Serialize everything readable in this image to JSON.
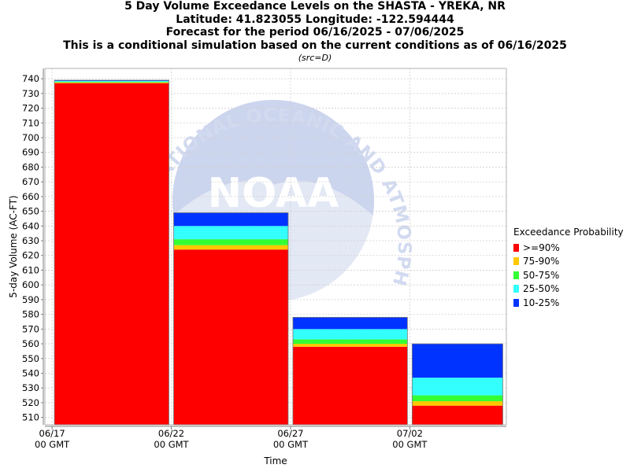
{
  "title_lines": [
    "5 Day Volume Exceedance Levels on the SHASTA - YREKA, NR",
    "Latitude: 41.823055 Longitude: -122.594444",
    "Forecast for the period 06/16/2025 - 07/06/2025",
    "This is a conditional simulation based on the current conditions as of 06/16/2025"
  ],
  "source_note": "(src=D)",
  "watermark": {
    "logo_text": "NOAA",
    "ring_text": "NATIONAL OCEANIC AND ATMOSPHERIC ADMINISTRATION"
  },
  "chart_data": {
    "type": "bar",
    "stacked": true,
    "xlabel": "Time",
    "ylabel": "5-day Volume (AC-FT)",
    "ylim": [
      505,
      747
    ],
    "y_ticks": [
      510,
      520,
      530,
      540,
      550,
      560,
      570,
      580,
      590,
      600,
      610,
      620,
      630,
      640,
      650,
      660,
      670,
      680,
      690,
      700,
      710,
      720,
      730,
      740
    ],
    "x_ticks": [
      {
        "date": "06/17",
        "sub": "00 GMT"
      },
      {
        "date": "06/22",
        "sub": "00 GMT"
      },
      {
        "date": "06/27",
        "sub": "00 GMT"
      },
      {
        "date": "07/02",
        "sub": "00 GMT"
      }
    ],
    "grid": true,
    "legend_title": "Exceedance Probability",
    "legend_position": "right",
    "bars": [
      {
        "start": "06/17",
        "end": "06/22",
        "levels": {
          ">=90%": 737,
          "75-90%": 737.5,
          "50-75%": 738,
          "25-50%": 738.5,
          "10-25%": 739
        }
      },
      {
        "start": "06/22",
        "end": "06/27",
        "levels": {
          ">=90%": 624,
          "75-90%": 627,
          "50-75%": 631,
          "25-50%": 640,
          "10-25%": 649
        }
      },
      {
        "start": "06/27",
        "end": "07/02",
        "levels": {
          ">=90%": 558,
          "75-90%": 560,
          "50-75%": 563,
          "25-50%": 570,
          "10-25%": 578
        }
      },
      {
        "start": "07/02",
        "end": "07/06",
        "levels": {
          ">=90%": 518,
          "75-90%": 521,
          "50-75%": 525,
          "25-50%": 537,
          "10-25%": 560
        }
      }
    ],
    "series": [
      {
        "name": ">=90%",
        "color": "#ff0000"
      },
      {
        "name": "75-90%",
        "color": "#ffc800"
      },
      {
        "name": "50-75%",
        "color": "#33ff33"
      },
      {
        "name": "25-50%",
        "color": "#33ffff"
      },
      {
        "name": "10-25%",
        "color": "#0033ff"
      }
    ]
  }
}
